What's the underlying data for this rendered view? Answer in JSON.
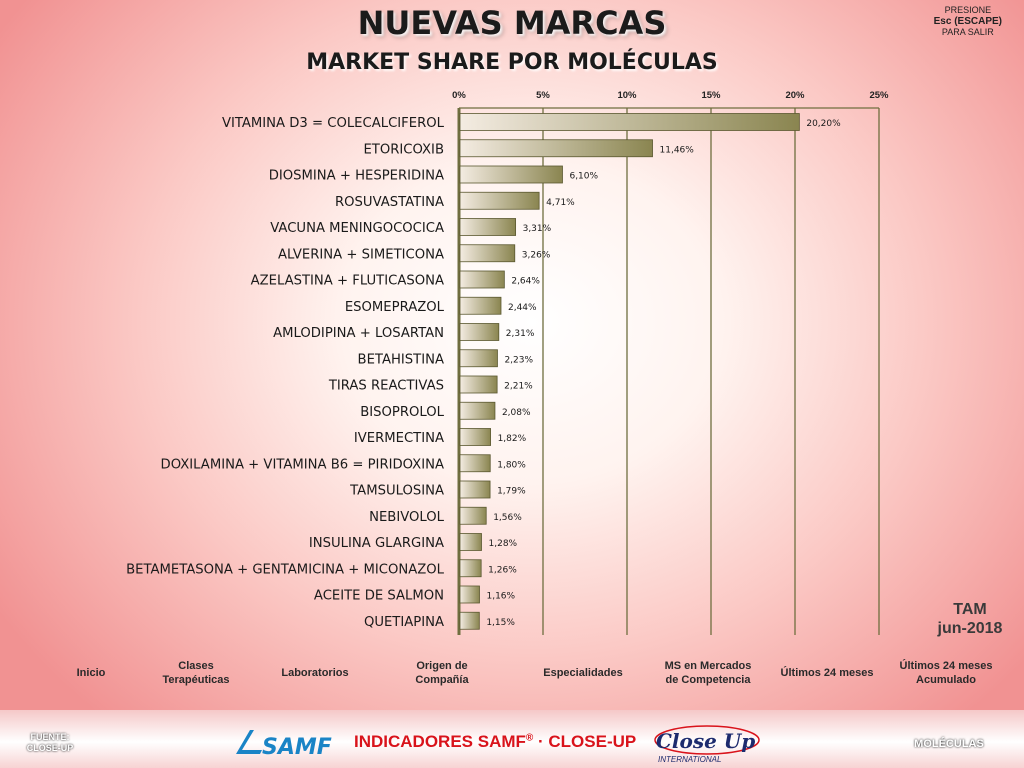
{
  "header": {
    "title": "NUEVAS MARCAS",
    "subtitle": "MARKET SHARE POR MOLÉCULAS",
    "esc_line1": "PRESIONE",
    "esc_line2": "Esc (ESCAPE)",
    "esc_line3": "PARA SALIR"
  },
  "period": {
    "label": "TAM",
    "date": "jun-2018"
  },
  "chart_data": {
    "type": "bar",
    "orientation": "horizontal",
    "title": "",
    "xlim": [
      0,
      25
    ],
    "xticks": [
      "0%",
      "5%",
      "10%",
      "15%",
      "20%",
      "25%"
    ],
    "categories": [
      "VITAMINA D3 = COLECALCIFEROL",
      "ETORICOXIB",
      "DIOSMINA + HESPERIDINA",
      "ROSUVASTATINA",
      "VACUNA MENINGOCOCICA",
      "ALVERINA + SIMETICONA",
      "AZELASTINA + FLUTICASONA",
      "ESOMEPRAZOL",
      "AMLODIPINA + LOSARTAN",
      "BETAHISTINA",
      "TIRAS REACTIVAS",
      "BISOPROLOL",
      "IVERMECTINA",
      "DOXILAMINA + VITAMINA B6 = PIRIDOXINA",
      "TAMSULOSINA",
      "NEBIVOLOL",
      "INSULINA GLARGINA",
      "BETAMETASONA + GENTAMICINA + MICONAZOL",
      "ACEITE DE SALMON",
      "QUETIAPINA"
    ],
    "values": [
      20.2,
      11.46,
      6.1,
      4.71,
      3.31,
      3.26,
      2.64,
      2.44,
      2.31,
      2.23,
      2.21,
      2.08,
      1.82,
      1.8,
      1.79,
      1.56,
      1.28,
      1.26,
      1.16,
      1.15
    ],
    "value_labels": [
      "20,20%",
      "11,46%",
      "6,10%",
      "4,71%",
      "3,31%",
      "3,26%",
      "2,64%",
      "2,44%",
      "2,31%",
      "2,23%",
      "2,21%",
      "2,08%",
      "1,82%",
      "1,80%",
      "1,79%",
      "1,56%",
      "1,28%",
      "1,26%",
      "1,16%",
      "1,15%"
    ],
    "grid": true,
    "bar_color_light": "#f4ece2",
    "bar_color_dark": "#8a8550",
    "axis_color": "#6f6e3f"
  },
  "nav": [
    {
      "id": "inicio",
      "label": "Inicio"
    },
    {
      "id": "clases",
      "label": "Clases\nTerapéuticas"
    },
    {
      "id": "laboratorios",
      "label": "Laboratorios"
    },
    {
      "id": "origen",
      "label": "Origen de\nCompañía"
    },
    {
      "id": "especialidades",
      "label": "Especialidades"
    },
    {
      "id": "ms-mercados",
      "label": "MS en Mercados\nde Competencia"
    },
    {
      "id": "ultimos24",
      "label": "Últimos 24 meses"
    },
    {
      "id": "ultimos24-acum",
      "label": "Últimos 24 meses\nAcumulado"
    }
  ],
  "footer": {
    "fuente": "FUENTE:\nCLOSE-UP",
    "indicadores": "INDICADORES SAMF",
    "registered": "®",
    "separator": " · ",
    "closeup": "CLOSE-UP",
    "samf_logo_text": "SAMF",
    "closeup_logo_text": "Close Up",
    "closeup_logo_sub": "INTERNATIONAL",
    "moleculas": "MOLÉCULAS"
  },
  "colors": {
    "accent_red": "#d9131b"
  }
}
